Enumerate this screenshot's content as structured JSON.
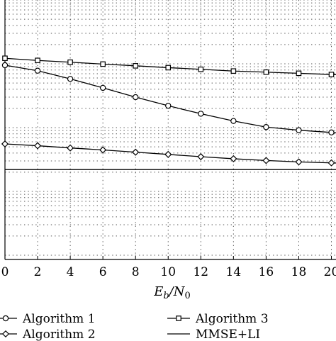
{
  "chart_data": {
    "type": "line",
    "x_axis_label": {
      "main": "E",
      "sub": "b",
      "sep": "/N",
      "sub2": "0"
    },
    "x": [
      0,
      2,
      4,
      6,
      8,
      10,
      12,
      14,
      16,
      18,
      20
    ],
    "x_tick_labels": [
      "0",
      "2",
      "4",
      "6",
      "8",
      "10",
      "12",
      "14",
      "16",
      "18",
      "20"
    ],
    "xlim": [
      0,
      20
    ],
    "y_scale": "log",
    "grid": true,
    "legend_position": "bottom",
    "series": [
      {
        "name": "Algorithm 1",
        "marker": "circle",
        "values": [
          0.0095,
          0.0078,
          0.0058,
          0.0042,
          0.003,
          0.0022,
          0.00165,
          0.00127,
          0.00102,
          0.00091,
          0.00084
        ]
      },
      {
        "name": "Algorithm 2",
        "marker": "diamond",
        "values": [
          0.000555,
          0.00052,
          0.00048,
          0.000447,
          0.000412,
          0.00038,
          0.00035,
          0.000325,
          0.000305,
          0.00029,
          0.00028
        ]
      },
      {
        "name": "Algorithm 3",
        "marker": "square",
        "values": [
          0.0122,
          0.0113,
          0.0106,
          0.0099,
          0.0093,
          0.0087,
          0.0082,
          0.0077,
          0.0074,
          0.0071,
          0.0068
        ]
      },
      {
        "name": "MMSE+LI",
        "marker": "none",
        "values": [
          0.00022,
          0.00022,
          0.00022,
          0.00022,
          0.00022,
          0.00022,
          0.00022,
          0.00022,
          0.00022,
          0.00022,
          0.00022
        ]
      }
    ],
    "legend": [
      {
        "label": "Algorithm 1",
        "marker": "circle"
      },
      {
        "label": "Algorithm 3",
        "marker": "square"
      },
      {
        "label": "Algorithm 2",
        "marker": "diamond"
      },
      {
        "label": "MMSE+LI",
        "marker": "none"
      }
    ]
  }
}
